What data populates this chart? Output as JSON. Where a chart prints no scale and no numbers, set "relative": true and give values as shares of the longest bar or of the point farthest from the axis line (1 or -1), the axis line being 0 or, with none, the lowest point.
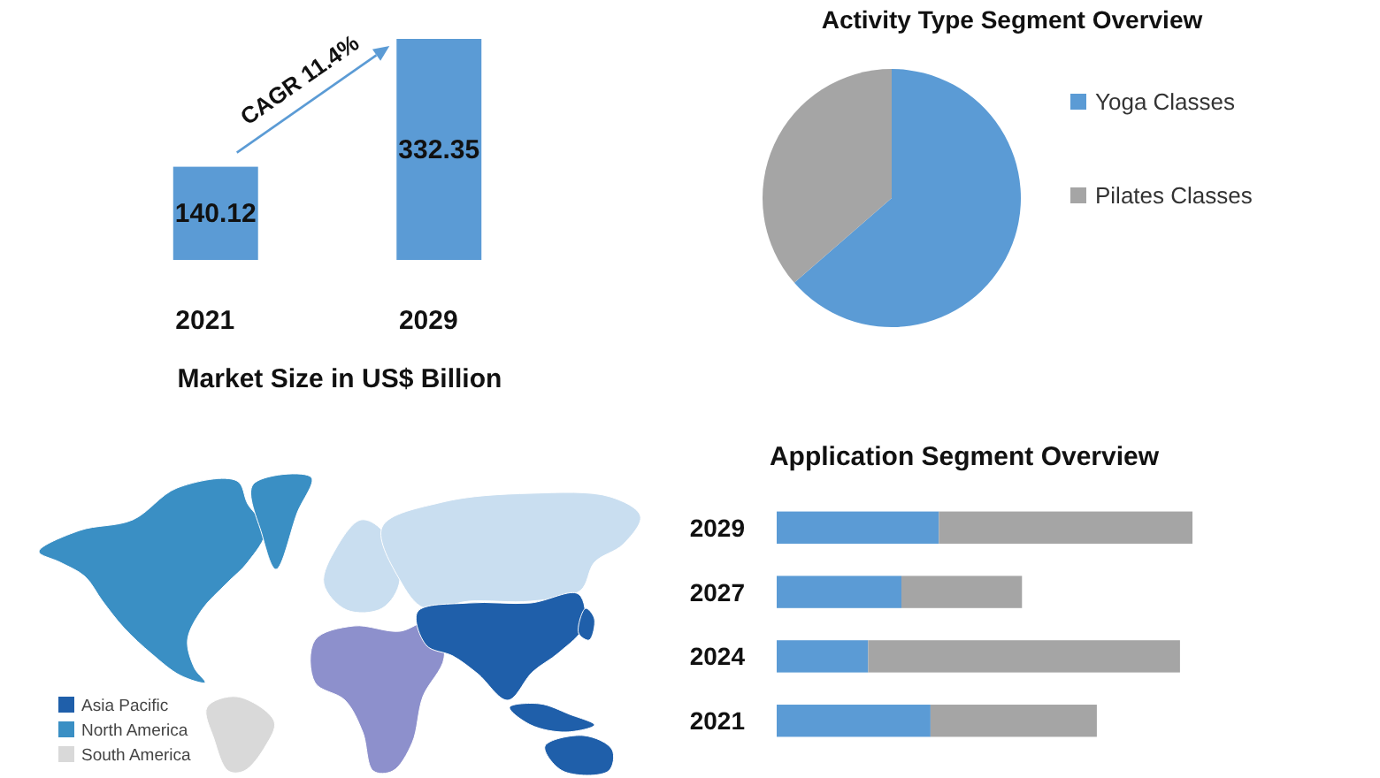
{
  "chart_data": [
    {
      "type": "bar",
      "title": "Market Size in US$ Billion",
      "categories": [
        "2021",
        "2029"
      ],
      "values": [
        140.12,
        332.35
      ],
      "color": "#5b9bd5",
      "data_labels": true,
      "annotations": [
        "CAGR 11.4%"
      ]
    },
    {
      "type": "pie",
      "title": "Activity Type Segment Overview",
      "categories": [
        "Yoga Classes",
        "Pilates Classes"
      ],
      "values": [
        63.6,
        36.4
      ],
      "colors": [
        "#5b9bd5",
        "#a5a5a5"
      ],
      "legend": "right"
    },
    {
      "type": "other",
      "categories": [
        "Asia Pacific",
        "North America",
        "South America"
      ],
      "colors": [
        "#1f5faa",
        "#3a8fc4",
        "#d9d9d9"
      ]
    },
    {
      "type": "bar",
      "orientation": "horizontal",
      "stacked": true,
      "relative": true,
      "title": "Application Segment Overview",
      "categories": [
        "2029",
        "2027",
        "2024",
        "2021"
      ],
      "series": [
        {
          "color": "#5b9bd5",
          "values": [
            0.39,
            0.3,
            0.22,
            0.37
          ]
        },
        {
          "color": "#a5a5a5",
          "values": [
            0.61,
            0.29,
            0.75,
            0.4
          ]
        }
      ]
    }
  ]
}
